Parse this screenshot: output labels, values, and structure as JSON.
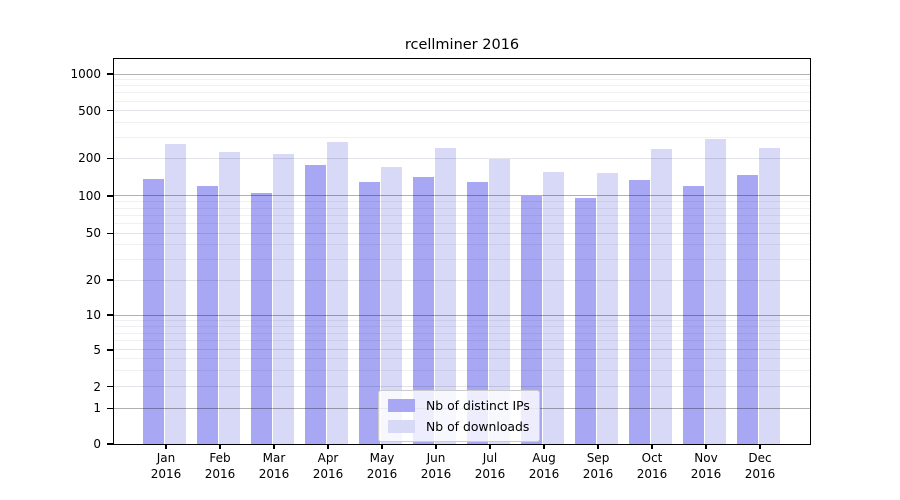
{
  "chart_data": {
    "type": "bar",
    "title": "rcellminer 2016",
    "categories": [
      "Jan",
      "Feb",
      "Mar",
      "Apr",
      "May",
      "Jun",
      "Jul",
      "Aug",
      "Sep",
      "Oct",
      "Nov",
      "Dec"
    ],
    "year": "2016",
    "y_ticks": [
      0,
      1,
      2,
      5,
      10,
      20,
      50,
      100,
      200,
      500,
      1000
    ],
    "y_scale": "log-with-zero",
    "ylim": [
      0,
      1000
    ],
    "grid": true,
    "legend_position": "inside-bottom-center",
    "series": [
      {
        "name": "Nb of distinct IPs",
        "color": "#a7a7f3",
        "values": [
          138,
          120,
          105,
          177,
          130,
          143,
          130,
          100,
          96,
          135,
          120,
          146
        ]
      },
      {
        "name": "Nb of downloads",
        "color": "#d8d8f7",
        "values": [
          266,
          228,
          218,
          272,
          170,
          245,
          198,
          155,
          152,
          240,
          288,
          242
        ]
      }
    ]
  }
}
